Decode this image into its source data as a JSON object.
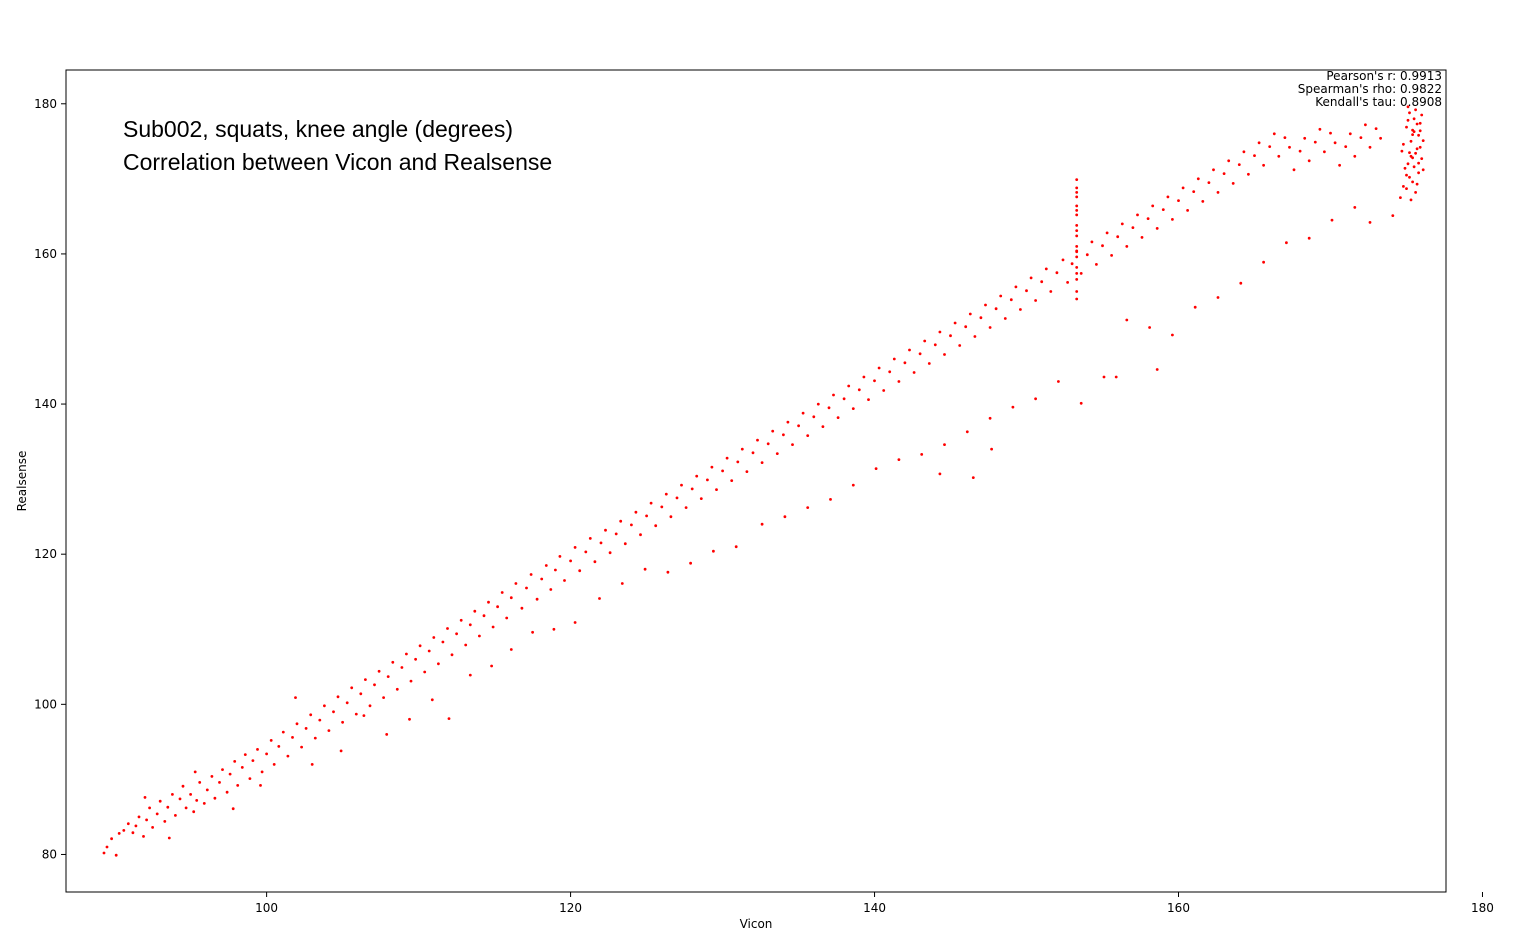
{
  "chart_data": {
    "type": "scatter",
    "title_lines": [
      "Sub002, squats, knee angle (degrees)",
      "Correlation between Vicon and Realsense"
    ],
    "xlabel": "Vicon",
    "ylabel": "Realsense",
    "xlim": [
      86.8,
      177.6
    ],
    "ylim": [
      75.0,
      184.5
    ],
    "xticks": [
      100,
      120,
      140,
      160,
      180
    ],
    "yticks": [
      80,
      100,
      120,
      140,
      160,
      180
    ],
    "grid": false,
    "marker_color": "#ff0000",
    "stats": [
      "Pearson's r: 0.9913",
      "Spearman's rho: 0.9822",
      "Kendall's tau: 0.8908"
    ],
    "stats_placement": "top-right",
    "points": [
      [
        89.3,
        80.2
      ],
      [
        89.5,
        81.0
      ],
      [
        89.8,
        82.1
      ],
      [
        90.1,
        79.9
      ],
      [
        90.3,
        82.8
      ],
      [
        90.6,
        83.2
      ],
      [
        90.9,
        84.1
      ],
      [
        91.2,
        82.9
      ],
      [
        91.4,
        83.8
      ],
      [
        91.6,
        85.0
      ],
      [
        91.9,
        82.4
      ],
      [
        92.1,
        84.6
      ],
      [
        92.3,
        86.2
      ],
      [
        92.5,
        83.6
      ],
      [
        92.8,
        85.4
      ],
      [
        93.0,
        87.1
      ],
      [
        93.3,
        84.4
      ],
      [
        93.5,
        86.3
      ],
      [
        93.8,
        88.0
      ],
      [
        94.0,
        85.2
      ],
      [
        94.3,
        87.4
      ],
      [
        94.5,
        89.1
      ],
      [
        94.7,
        86.2
      ],
      [
        95.0,
        88.0
      ],
      [
        95.2,
        85.7
      ],
      [
        95.4,
        87.2
      ],
      [
        95.6,
        89.6
      ],
      [
        95.9,
        86.8
      ],
      [
        96.1,
        88.6
      ],
      [
        96.4,
        90.4
      ],
      [
        96.6,
        87.5
      ],
      [
        96.9,
        89.6
      ],
      [
        97.1,
        91.3
      ],
      [
        97.4,
        88.3
      ],
      [
        97.6,
        90.7
      ],
      [
        97.9,
        92.4
      ],
      [
        98.1,
        89.2
      ],
      [
        98.4,
        91.6
      ],
      [
        98.6,
        93.3
      ],
      [
        98.9,
        90.1
      ],
      [
        99.1,
        92.5
      ],
      [
        99.4,
        94.0
      ],
      [
        99.7,
        91.0
      ],
      [
        100.0,
        93.4
      ],
      [
        100.3,
        95.2
      ],
      [
        100.5,
        92.0
      ],
      [
        100.8,
        94.4
      ],
      [
        101.1,
        96.3
      ],
      [
        101.4,
        93.1
      ],
      [
        101.7,
        95.6
      ],
      [
        102.0,
        97.4
      ],
      [
        102.3,
        94.3
      ],
      [
        102.6,
        96.8
      ],
      [
        102.9,
        98.6
      ],
      [
        103.2,
        95.5
      ],
      [
        103.5,
        97.9
      ],
      [
        103.8,
        99.8
      ],
      [
        104.1,
        96.5
      ],
      [
        104.4,
        99.0
      ],
      [
        104.7,
        101.0
      ],
      [
        105.0,
        97.6
      ],
      [
        105.3,
        100.2
      ],
      [
        105.6,
        102.2
      ],
      [
        105.9,
        98.7
      ],
      [
        106.2,
        101.4
      ],
      [
        106.5,
        103.3
      ],
      [
        106.8,
        99.8
      ],
      [
        107.1,
        102.6
      ],
      [
        107.4,
        104.4
      ],
      [
        107.7,
        100.9
      ],
      [
        108.0,
        103.7
      ],
      [
        108.3,
        105.6
      ],
      [
        108.6,
        102.0
      ],
      [
        108.9,
        104.9
      ],
      [
        109.2,
        106.7
      ],
      [
        109.5,
        103.1
      ],
      [
        109.8,
        106.0
      ],
      [
        110.1,
        107.8
      ],
      [
        110.4,
        104.3
      ],
      [
        110.7,
        107.1
      ],
      [
        111.0,
        108.9
      ],
      [
        111.3,
        105.4
      ],
      [
        111.6,
        108.3
      ],
      [
        111.9,
        110.1
      ],
      [
        112.2,
        106.6
      ],
      [
        112.5,
        109.4
      ],
      [
        112.8,
        111.2
      ],
      [
        113.1,
        107.9
      ],
      [
        113.4,
        110.6
      ],
      [
        113.7,
        112.4
      ],
      [
        114.0,
        109.1
      ],
      [
        114.3,
        111.8
      ],
      [
        114.6,
        113.6
      ],
      [
        114.9,
        110.3
      ],
      [
        115.2,
        113.0
      ],
      [
        115.5,
        114.9
      ],
      [
        115.8,
        111.5
      ],
      [
        116.1,
        114.2
      ],
      [
        116.4,
        116.1
      ],
      [
        116.8,
        112.8
      ],
      [
        117.1,
        115.5
      ],
      [
        117.4,
        117.3
      ],
      [
        117.8,
        114.0
      ],
      [
        118.1,
        116.7
      ],
      [
        118.4,
        118.5
      ],
      [
        118.7,
        115.3
      ],
      [
        119.0,
        117.9
      ],
      [
        119.3,
        119.7
      ],
      [
        119.6,
        116.5
      ],
      [
        120.0,
        119.1
      ],
      [
        120.3,
        120.9
      ],
      [
        120.6,
        117.8
      ],
      [
        121.0,
        120.3
      ],
      [
        121.3,
        122.1
      ],
      [
        121.6,
        119.0
      ],
      [
        122.0,
        121.5
      ],
      [
        122.3,
        123.2
      ],
      [
        122.6,
        120.2
      ],
      [
        123.0,
        122.7
      ],
      [
        123.3,
        124.4
      ],
      [
        123.6,
        121.4
      ],
      [
        124.0,
        123.9
      ],
      [
        124.3,
        125.6
      ],
      [
        124.6,
        122.6
      ],
      [
        125.0,
        125.1
      ],
      [
        125.3,
        126.8
      ],
      [
        125.6,
        123.8
      ],
      [
        126.0,
        126.3
      ],
      [
        126.3,
        128.0
      ],
      [
        126.6,
        125.0
      ],
      [
        127.0,
        127.5
      ],
      [
        127.3,
        129.2
      ],
      [
        127.6,
        126.2
      ],
      [
        128.0,
        128.7
      ],
      [
        128.3,
        130.4
      ],
      [
        128.6,
        127.4
      ],
      [
        129.0,
        129.9
      ],
      [
        129.3,
        131.6
      ],
      [
        129.6,
        128.6
      ],
      [
        130.0,
        131.1
      ],
      [
        130.3,
        132.8
      ],
      [
        130.6,
        129.8
      ],
      [
        131.0,
        132.3
      ],
      [
        131.3,
        134.0
      ],
      [
        131.6,
        131.0
      ],
      [
        132.0,
        133.5
      ],
      [
        132.3,
        135.2
      ],
      [
        132.6,
        132.2
      ],
      [
        133.0,
        134.7
      ],
      [
        133.3,
        136.4
      ],
      [
        133.6,
        133.4
      ],
      [
        134.0,
        135.9
      ],
      [
        134.3,
        137.6
      ],
      [
        134.6,
        134.6
      ],
      [
        135.0,
        137.1
      ],
      [
        135.3,
        138.8
      ],
      [
        135.6,
        135.8
      ],
      [
        136.0,
        138.3
      ],
      [
        136.3,
        140.0
      ],
      [
        136.6,
        137.0
      ],
      [
        137.0,
        139.5
      ],
      [
        137.3,
        141.2
      ],
      [
        137.6,
        138.2
      ],
      [
        138.0,
        140.7
      ],
      [
        138.3,
        142.4
      ],
      [
        138.6,
        139.4
      ],
      [
        139.0,
        141.9
      ],
      [
        139.3,
        143.6
      ],
      [
        139.6,
        140.6
      ],
      [
        140.0,
        143.1
      ],
      [
        140.3,
        144.8
      ],
      [
        140.6,
        141.8
      ],
      [
        141.0,
        144.3
      ],
      [
        141.3,
        146.0
      ],
      [
        141.6,
        143.0
      ],
      [
        142.0,
        145.5
      ],
      [
        142.3,
        147.2
      ],
      [
        142.6,
        144.2
      ],
      [
        143.0,
        146.7
      ],
      [
        143.3,
        148.4
      ],
      [
        143.6,
        145.4
      ],
      [
        144.0,
        147.9
      ],
      [
        144.3,
        149.6
      ],
      [
        144.6,
        146.6
      ],
      [
        145.0,
        149.1
      ],
      [
        145.3,
        150.8
      ],
      [
        145.6,
        147.8
      ],
      [
        146.0,
        150.3
      ],
      [
        146.3,
        152.0
      ],
      [
        146.6,
        149.0
      ],
      [
        147.0,
        151.5
      ],
      [
        147.3,
        153.2
      ],
      [
        147.6,
        150.2
      ],
      [
        148.0,
        152.7
      ],
      [
        148.3,
        154.4
      ],
      [
        148.6,
        151.4
      ],
      [
        149.0,
        153.9
      ],
      [
        149.3,
        155.6
      ],
      [
        149.6,
        152.6
      ],
      [
        150.0,
        155.1
      ],
      [
        150.3,
        156.8
      ],
      [
        150.6,
        153.8
      ],
      [
        151.0,
        156.3
      ],
      [
        151.3,
        158.0
      ],
      [
        151.6,
        155.0
      ],
      [
        152.0,
        157.5
      ],
      [
        152.4,
        159.2
      ],
      [
        152.7,
        156.2
      ],
      [
        153.0,
        158.7
      ],
      [
        153.3,
        160.4
      ],
      [
        153.6,
        157.4
      ],
      [
        154.0,
        159.9
      ],
      [
        154.3,
        161.6
      ],
      [
        154.6,
        158.6
      ],
      [
        155.0,
        161.1
      ],
      [
        155.3,
        162.8
      ],
      [
        155.6,
        159.8
      ],
      [
        156.0,
        162.3
      ],
      [
        156.3,
        164.0
      ],
      [
        156.6,
        161.0
      ],
      [
        157.0,
        163.5
      ],
      [
        157.3,
        165.2
      ],
      [
        157.6,
        162.2
      ],
      [
        158.0,
        164.7
      ],
      [
        158.3,
        166.4
      ],
      [
        158.6,
        163.4
      ],
      [
        159.0,
        165.9
      ],
      [
        159.3,
        167.6
      ],
      [
        159.6,
        164.6
      ],
      [
        160.0,
        167.1
      ],
      [
        160.3,
        168.8
      ],
      [
        160.6,
        165.8
      ],
      [
        161.0,
        168.3
      ],
      [
        161.3,
        170.0
      ],
      [
        161.6,
        167.0
      ],
      [
        162.0,
        169.5
      ],
      [
        162.3,
        171.2
      ],
      [
        162.6,
        168.2
      ],
      [
        163.0,
        170.7
      ],
      [
        163.3,
        172.4
      ],
      [
        163.6,
        169.4
      ],
      [
        164.0,
        171.9
      ],
      [
        164.3,
        173.6
      ],
      [
        164.6,
        170.6
      ],
      [
        165.0,
        173.1
      ],
      [
        165.3,
        174.8
      ],
      [
        165.6,
        171.8
      ],
      [
        166.0,
        174.3
      ],
      [
        166.3,
        176.0
      ],
      [
        166.6,
        173.0
      ],
      [
        167.0,
        175.5
      ],
      [
        167.3,
        174.2
      ],
      [
        167.6,
        171.2
      ],
      [
        168.0,
        173.7
      ],
      [
        168.3,
        175.4
      ],
      [
        168.6,
        172.4
      ],
      [
        169.0,
        174.9
      ],
      [
        169.3,
        176.6
      ],
      [
        169.6,
        173.6
      ],
      [
        170.0,
        176.1
      ],
      [
        170.3,
        174.8
      ],
      [
        170.6,
        171.8
      ],
      [
        171.0,
        174.3
      ],
      [
        171.3,
        176.0
      ],
      [
        171.6,
        173.0
      ],
      [
        172.0,
        175.5
      ],
      [
        172.3,
        177.2
      ],
      [
        172.6,
        174.2
      ],
      [
        173.0,
        176.7
      ],
      [
        173.3,
        175.4
      ],
      [
        92.0,
        87.6
      ],
      [
        93.6,
        82.2
      ],
      [
        95.3,
        91.0
      ],
      [
        97.8,
        86.1
      ],
      [
        99.6,
        89.2
      ],
      [
        101.9,
        100.9
      ],
      [
        103.0,
        92.0
      ],
      [
        104.9,
        93.8
      ],
      [
        106.4,
        98.5
      ],
      [
        107.9,
        96.0
      ],
      [
        109.4,
        98.0
      ],
      [
        110.9,
        100.6
      ],
      [
        112.0,
        98.1
      ],
      [
        113.4,
        103.9
      ],
      [
        114.8,
        105.1
      ],
      [
        116.1,
        107.3
      ],
      [
        117.5,
        109.6
      ],
      [
        118.9,
        110.0
      ],
      [
        120.3,
        110.9
      ],
      [
        121.9,
        114.1
      ],
      [
        123.4,
        116.1
      ],
      [
        124.9,
        118.0
      ],
      [
        126.4,
        117.6
      ],
      [
        127.9,
        118.8
      ],
      [
        129.4,
        120.4
      ],
      [
        130.9,
        121.0
      ],
      [
        132.6,
        124.0
      ],
      [
        134.1,
        125.0
      ],
      [
        135.6,
        126.2
      ],
      [
        137.1,
        127.3
      ],
      [
        138.6,
        129.2
      ],
      [
        140.1,
        131.4
      ],
      [
        141.6,
        132.6
      ],
      [
        143.1,
        133.3
      ],
      [
        144.6,
        134.6
      ],
      [
        146.1,
        136.3
      ],
      [
        147.6,
        138.1
      ],
      [
        149.1,
        139.6
      ],
      [
        150.6,
        140.7
      ],
      [
        152.1,
        143.0
      ],
      [
        153.6,
        140.1
      ],
      [
        155.1,
        143.6
      ],
      [
        156.6,
        151.2
      ],
      [
        158.1,
        150.2
      ],
      [
        159.6,
        149.2
      ],
      [
        161.1,
        152.9
      ],
      [
        162.6,
        154.2
      ],
      [
        164.1,
        156.1
      ],
      [
        165.6,
        158.9
      ],
      [
        167.1,
        161.5
      ],
      [
        168.6,
        162.1
      ],
      [
        170.1,
        164.5
      ],
      [
        171.6,
        166.2
      ],
      [
        172.6,
        164.2
      ],
      [
        174.1,
        165.1
      ],
      [
        146.5,
        130.2
      ],
      [
        147.7,
        134.0
      ],
      [
        144.3,
        130.7
      ],
      [
        158.6,
        144.6
      ],
      [
        155.9,
        143.6
      ],
      [
        153.3,
        155.0
      ],
      [
        153.3,
        156.6
      ],
      [
        153.3,
        158.2
      ],
      [
        153.3,
        159.6
      ],
      [
        153.3,
        161.0
      ],
      [
        153.3,
        162.4
      ],
      [
        153.3,
        163.8
      ],
      [
        153.3,
        165.2
      ],
      [
        153.3,
        166.4
      ],
      [
        153.3,
        167.6
      ],
      [
        153.3,
        168.8
      ],
      [
        153.3,
        169.9
      ],
      [
        153.3,
        154.0
      ],
      [
        153.3,
        157.4
      ],
      [
        153.3,
        160.3
      ],
      [
        153.3,
        163.1
      ],
      [
        153.3,
        165.8
      ],
      [
        153.3,
        168.2
      ],
      [
        174.6,
        167.5
      ],
      [
        174.8,
        169.0
      ],
      [
        175.0,
        170.5
      ],
      [
        175.1,
        172.0
      ],
      [
        175.2,
        173.5
      ],
      [
        175.3,
        175.0
      ],
      [
        175.4,
        176.5
      ],
      [
        175.5,
        178.0
      ],
      [
        175.6,
        179.2
      ],
      [
        175.7,
        177.3
      ],
      [
        175.8,
        175.8
      ],
      [
        175.9,
        174.2
      ],
      [
        176.0,
        172.7
      ],
      [
        176.1,
        171.2
      ],
      [
        175.4,
        169.6
      ],
      [
        175.6,
        168.2
      ],
      [
        175.8,
        170.8
      ],
      [
        175.2,
        178.8
      ],
      [
        175.0,
        176.9
      ],
      [
        174.8,
        174.6
      ],
      [
        175.3,
        173.0
      ],
      [
        175.5,
        171.6
      ],
      [
        175.7,
        174.0
      ],
      [
        175.9,
        176.4
      ],
      [
        176.0,
        178.5
      ],
      [
        175.1,
        177.8
      ],
      [
        175.4,
        175.9
      ],
      [
        175.6,
        173.4
      ],
      [
        175.8,
        172.1
      ],
      [
        175.2,
        170.2
      ],
      [
        175.0,
        168.7
      ],
      [
        174.9,
        171.4
      ],
      [
        175.4,
        172.8
      ],
      [
        175.7,
        169.3
      ],
      [
        175.3,
        167.2
      ],
      [
        175.1,
        179.6
      ],
      [
        175.5,
        176.3
      ],
      [
        175.9,
        177.4
      ],
      [
        176.1,
        175.1
      ],
      [
        174.7,
        173.7
      ]
    ]
  }
}
